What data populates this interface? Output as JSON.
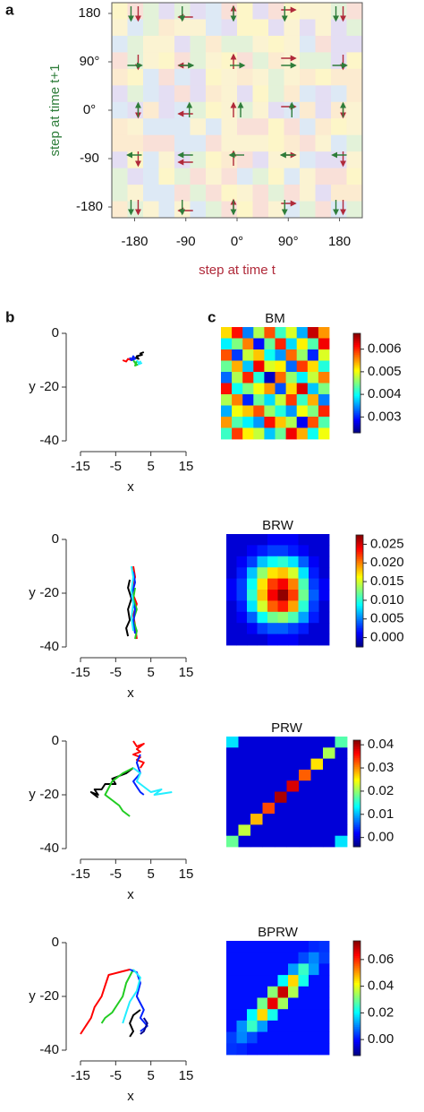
{
  "chart_data": [
    {
      "type": "grid",
      "panel_label": "a",
      "xlabel": "step at time t",
      "ylabel": "step at time t+1",
      "xlabel_color": "#b02a3a",
      "ylabel_color": "#2e7d3a",
      "xlim": [
        -220,
        220
      ],
      "ylim": [
        -200,
        200
      ],
      "xticks": [
        -180,
        -90,
        {
          "value": 0,
          "label": "0°"
        },
        {
          "value": 90,
          "label": "90°"
        },
        180
      ],
      "yticks": [
        180,
        {
          "value": 90,
          "label": "90°"
        },
        {
          "value": 0,
          "label": "0°"
        },
        -90,
        -180
      ]
    },
    {
      "type": "line",
      "panel_label": "b",
      "xlabel": "x",
      "ylabel": "y",
      "xlim": [
        -15,
        15
      ],
      "ylim": [
        -40,
        0
      ],
      "xticks": [
        -15,
        -5,
        5,
        15
      ],
      "yticks": [
        0,
        -20,
        -40
      ],
      "series": [
        {
          "color": "#000000",
          "x": [
            0.5,
            1.5,
            1,
            2.5,
            2,
            3
          ],
          "values": [
            -9,
            -9.5,
            -8.5,
            -8,
            -7.5,
            -7
          ]
        },
        {
          "color": "#ff0000",
          "x": [
            -3,
            -2,
            -1.5,
            -0.5,
            0,
            -1
          ],
          "values": [
            -10,
            -10.5,
            -9.5,
            -10,
            -9,
            -10
          ]
        },
        {
          "color": "#22cc22",
          "x": [
            0,
            0.5,
            1,
            0.5,
            1.5
          ],
          "values": [
            -10,
            -11,
            -10.5,
            -12,
            -11.5
          ]
        },
        {
          "color": "#0022ff",
          "x": [
            -1,
            -0.5,
            0,
            0.5,
            -0.5
          ],
          "values": [
            -9,
            -10,
            -8.5,
            -9.5,
            -10
          ]
        },
        {
          "color": "#22eeff",
          "x": [
            1,
            1.5,
            2,
            1.5,
            2.5
          ],
          "values": [
            -10,
            -11,
            -10.5,
            -11.5,
            -11
          ]
        }
      ]
    },
    {
      "type": "line",
      "xlabel": "x",
      "ylabel": "y",
      "xlim": [
        -15,
        15
      ],
      "ylim": [
        -40,
        0
      ],
      "xticks": [
        -15,
        -5,
        5,
        15
      ],
      "yticks": [
        0,
        -20,
        -40
      ],
      "series": [
        {
          "color": "#000000",
          "x": [
            -1,
            -1.5,
            -0.5,
            -1.5,
            -1,
            -2,
            -1.5
          ],
          "values": [
            -15,
            -18,
            -22,
            -26,
            -30,
            -33,
            -36
          ]
        },
        {
          "color": "#ff0000",
          "x": [
            0,
            0.5,
            -0.5,
            1,
            0,
            0.5,
            1
          ],
          "values": [
            -10,
            -14,
            -19,
            -24,
            -28,
            -32,
            -37
          ]
        },
        {
          "color": "#22cc22",
          "x": [
            0.5,
            0,
            1,
            0,
            1,
            0.5
          ],
          "values": [
            -18,
            -22,
            -26,
            -30,
            -34,
            -37
          ]
        },
        {
          "color": "#0022ff",
          "x": [
            0,
            0.5,
            -0.5,
            0.5,
            0,
            0.5
          ],
          "values": [
            -12,
            -16,
            -21,
            -26,
            -31,
            -35
          ]
        },
        {
          "color": "#22eeff",
          "x": [
            -0.5,
            0,
            -0.5,
            0,
            -0.5,
            0
          ],
          "values": [
            -10,
            -14,
            -19,
            -24,
            -29,
            -34
          ]
        }
      ]
    },
    {
      "type": "line",
      "xlabel": "x",
      "ylabel": "y",
      "xlim": [
        -15,
        15
      ],
      "ylim": [
        -40,
        0
      ],
      "xticks": [
        -15,
        -5,
        5,
        15
      ],
      "yticks": [
        0,
        -20,
        -40
      ],
      "series": [
        {
          "color": "#ff0000",
          "x": [
            0,
            1,
            3,
            1,
            2,
            0,
            2,
            1,
            3,
            2
          ],
          "values": [
            0,
            -2,
            -1,
            -3,
            -4,
            -5,
            -6,
            -7,
            -8,
            -10
          ]
        },
        {
          "color": "#000000",
          "x": [
            0,
            -2,
            -4,
            -6,
            -5,
            -8,
            -9,
            -11,
            -10,
            -12,
            -10
          ],
          "values": [
            -10,
            -12,
            -13,
            -14,
            -16,
            -16,
            -18,
            -18,
            -20,
            -19,
            -21
          ]
        },
        {
          "color": "#22cc22",
          "x": [
            0,
            -3,
            -6,
            -8,
            -6,
            -4,
            -3,
            -1
          ],
          "values": [
            -10,
            -12,
            -15,
            -20,
            -22,
            -24,
            -26,
            -28
          ]
        },
        {
          "color": "#0022ff",
          "x": [
            2,
            1,
            2,
            0,
            1,
            2,
            3
          ],
          "values": [
            -5,
            -8,
            -12,
            -15,
            -17,
            -19,
            -20
          ]
        },
        {
          "color": "#22eeff",
          "x": [
            0,
            2,
            1,
            3,
            5,
            8,
            6,
            11
          ],
          "values": [
            -10,
            -12,
            -15,
            -17,
            -19,
            -18,
            -20,
            -19
          ]
        }
      ]
    },
    {
      "type": "line",
      "xlabel": "x",
      "ylabel": "y",
      "xlim": [
        -15,
        15
      ],
      "ylim": [
        -40,
        0
      ],
      "xticks": [
        -15,
        -5,
        5,
        15
      ],
      "yticks": [
        0,
        -20,
        -40
      ],
      "series": [
        {
          "color": "#ff0000",
          "x": [
            -1,
            -4,
            -7,
            -8,
            -9,
            -11,
            -12,
            -14,
            -15
          ],
          "values": [
            -10,
            -11,
            -12,
            -16,
            -20,
            -24,
            -28,
            -32,
            -34
          ]
        },
        {
          "color": "#22cc22",
          "x": [
            0,
            -2,
            -3,
            -5,
            -6,
            -8,
            -9
          ],
          "values": [
            -10,
            -15,
            -20,
            -24,
            -26,
            -28,
            -30
          ]
        },
        {
          "color": "#0022ff",
          "x": [
            -1,
            1,
            2,
            1,
            3,
            2,
            4,
            2
          ],
          "values": [
            -10,
            -11,
            -15,
            -20,
            -25,
            -28,
            -31,
            -33
          ]
        },
        {
          "color": "#22eeff",
          "x": [
            0,
            2,
            1,
            -1,
            -2,
            -3
          ],
          "values": [
            -10,
            -13,
            -18,
            -22,
            -26,
            -30
          ]
        },
        {
          "color": "#000000",
          "x": [
            2,
            0,
            -1,
            0,
            -1
          ],
          "values": [
            -25,
            -27,
            -30,
            -33,
            -35
          ]
        },
        {
          "color": "#00008b",
          "x": [
            3,
            4,
            3,
            2
          ],
          "values": [
            -28,
            -30,
            -33,
            -34
          ]
        }
      ]
    },
    {
      "type": "heatmap",
      "panel_label": "c",
      "title": "BM",
      "colormap": "jet",
      "zlim": [
        0.0023,
        0.0067
      ],
      "zticks": [
        {
          "value": 0.006,
          "label": "0.006"
        },
        {
          "value": 0.005,
          "label": "0.005"
        },
        {
          "value": 0.004,
          "label": "0.004"
        },
        {
          "value": 0.003,
          "label": "0.003"
        }
      ],
      "values": [
        [
          0.0052,
          0.0061,
          0.0034,
          0.0047,
          0.0058,
          0.0042,
          0.0049,
          0.0036,
          0.0064,
          0.0055
        ],
        [
          0.0039,
          0.0045,
          0.0056,
          0.0029,
          0.0044,
          0.006,
          0.0038,
          0.0051,
          0.0043,
          0.0062
        ],
        [
          0.0058,
          0.0031,
          0.0048,
          0.0053,
          0.004,
          0.0035,
          0.0057,
          0.0046,
          0.003,
          0.0049
        ],
        [
          0.0044,
          0.0054,
          0.0037,
          0.0062,
          0.0049,
          0.0051,
          0.0033,
          0.0059,
          0.0052,
          0.0041
        ],
        [
          0.0033,
          0.0047,
          0.006,
          0.0041,
          0.0026,
          0.0057,
          0.0046,
          0.0039,
          0.0048,
          0.0056
        ],
        [
          0.0061,
          0.004,
          0.0045,
          0.005,
          0.0055,
          0.0032,
          0.0052,
          0.0063,
          0.0037,
          0.0045
        ],
        [
          0.0047,
          0.0056,
          0.003,
          0.0044,
          0.0038,
          0.0048,
          0.0059,
          0.0042,
          0.0054,
          0.0034
        ],
        [
          0.0036,
          0.005,
          0.0053,
          0.0058,
          0.0046,
          0.0041,
          0.0035,
          0.005,
          0.0045,
          0.006
        ],
        [
          0.0055,
          0.0043,
          0.0039,
          0.0035,
          0.0061,
          0.0053,
          0.0047,
          0.0028,
          0.0058,
          0.0043
        ],
        [
          0.0042,
          0.0059,
          0.0051,
          0.0048,
          0.0037,
          0.0044,
          0.0062,
          0.0054,
          0.004,
          0.005
        ]
      ]
    },
    {
      "type": "heatmap",
      "title": "BRW",
      "colormap": "jet",
      "zlim": [
        -0.0025,
        0.0275
      ],
      "zticks": [
        {
          "value": 0.025,
          "label": "0.025"
        },
        {
          "value": 0.02,
          "label": "0.020"
        },
        {
          "value": 0.015,
          "label": "0.015"
        },
        {
          "value": 0.01,
          "label": "0.010"
        },
        {
          "value": 0.005,
          "label": "0.005"
        },
        {
          "value": 0,
          "label": "0.000"
        }
      ],
      "values": [
        [
          0,
          0,
          0,
          0,
          0.001,
          0.001,
          0.001,
          0,
          0,
          0
        ],
        [
          0,
          0,
          0.001,
          0.002,
          0.003,
          0.003,
          0.002,
          0.001,
          0,
          0
        ],
        [
          0,
          0.001,
          0.003,
          0.007,
          0.009,
          0.01,
          0.008,
          0.004,
          0.001,
          0
        ],
        [
          0,
          0.002,
          0.007,
          0.013,
          0.017,
          0.018,
          0.015,
          0.008,
          0.002,
          0
        ],
        [
          0.001,
          0.003,
          0.009,
          0.017,
          0.022,
          0.024,
          0.02,
          0.011,
          0.003,
          0.001
        ],
        [
          0.001,
          0.003,
          0.01,
          0.018,
          0.024,
          0.027,
          0.022,
          0.012,
          0.004,
          0.001
        ],
        [
          0,
          0.002,
          0.008,
          0.015,
          0.021,
          0.023,
          0.019,
          0.01,
          0.003,
          0
        ],
        [
          0,
          0.001,
          0.004,
          0.009,
          0.012,
          0.013,
          0.011,
          0.006,
          0.002,
          0
        ],
        [
          0,
          0,
          0.001,
          0.003,
          0.004,
          0.004,
          0.003,
          0.002,
          0,
          0
        ],
        [
          0,
          0,
          0,
          0,
          0.001,
          0.001,
          0.001,
          0,
          0,
          0
        ]
      ]
    },
    {
      "type": "heatmap",
      "title": "PRW",
      "colormap": "jet",
      "zlim": [
        -0.004,
        0.042
      ],
      "zticks": [
        {
          "value": 0.04,
          "label": "0.04"
        },
        {
          "value": 0.03,
          "label": "0.03"
        },
        {
          "value": 0.02,
          "label": "0.02"
        },
        {
          "value": 0.01,
          "label": "0.01"
        },
        {
          "value": 0,
          "label": "0.00"
        }
      ],
      "values": [
        [
          0.012,
          0,
          0,
          0,
          0,
          0,
          0,
          0,
          0,
          0.017
        ],
        [
          0,
          0,
          0,
          0,
          0,
          0,
          0,
          0,
          0.021,
          0
        ],
        [
          0,
          0,
          0,
          0,
          0,
          0,
          0,
          0.026,
          0,
          0
        ],
        [
          0,
          0,
          0,
          0,
          0,
          0,
          0.032,
          0,
          0,
          0
        ],
        [
          0,
          0,
          0,
          0,
          0,
          0.038,
          0,
          0,
          0,
          0
        ],
        [
          0,
          0,
          0,
          0,
          0.04,
          0,
          0,
          0,
          0,
          0
        ],
        [
          0,
          0,
          0,
          0.033,
          0,
          0,
          0,
          0,
          0,
          0
        ],
        [
          0,
          0,
          0.028,
          0,
          0,
          0,
          0,
          0,
          0,
          0
        ],
        [
          0,
          0.022,
          0,
          0,
          0,
          0,
          0,
          0,
          0,
          0
        ],
        [
          0.018,
          0,
          0,
          0,
          0,
          0,
          0,
          0,
          0,
          0.012
        ]
      ]
    },
    {
      "type": "heatmap",
      "title": "BPRW",
      "colormap": "jet",
      "zlim": [
        -0.012,
        0.074
      ],
      "zticks": [
        {
          "value": 0.06,
          "label": "0.06"
        },
        {
          "value": 0.04,
          "label": "0.04"
        },
        {
          "value": 0.02,
          "label": "0.02"
        },
        {
          "value": 0,
          "label": "0.00"
        }
      ],
      "values": [
        [
          0,
          0,
          0,
          0,
          0,
          0,
          0,
          0,
          0.002,
          0.003
        ],
        [
          0,
          0,
          0,
          0,
          0,
          0,
          0,
          0.005,
          0.01,
          0.004
        ],
        [
          0,
          0,
          0,
          0,
          0,
          0,
          0.012,
          0.025,
          0.012,
          0
        ],
        [
          0,
          0,
          0,
          0,
          0,
          0.02,
          0.045,
          0.022,
          0,
          0
        ],
        [
          0,
          0,
          0,
          0,
          0.032,
          0.068,
          0.035,
          0,
          0,
          0
        ],
        [
          0,
          0,
          0,
          0.03,
          0.065,
          0.034,
          0,
          0,
          0,
          0
        ],
        [
          0,
          0,
          0.02,
          0.045,
          0.022,
          0,
          0,
          0,
          0,
          0
        ],
        [
          0,
          0.011,
          0.025,
          0.012,
          0,
          0,
          0,
          0,
          0,
          0
        ],
        [
          0.004,
          0.01,
          0.005,
          0,
          0,
          0,
          0,
          0,
          0,
          0
        ],
        [
          0.003,
          0.002,
          0,
          0,
          0,
          0,
          0,
          0,
          0,
          0
        ]
      ]
    }
  ]
}
